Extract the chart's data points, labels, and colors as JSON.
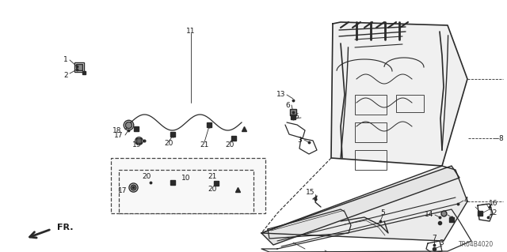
{
  "background_color": "#ffffff",
  "line_color": "#2a2a2a",
  "text_color": "#1a1a1a",
  "font_size": 6.5,
  "code": "TR04B4020",
  "fig_width": 6.4,
  "fig_height": 3.19,
  "dpi": 100
}
